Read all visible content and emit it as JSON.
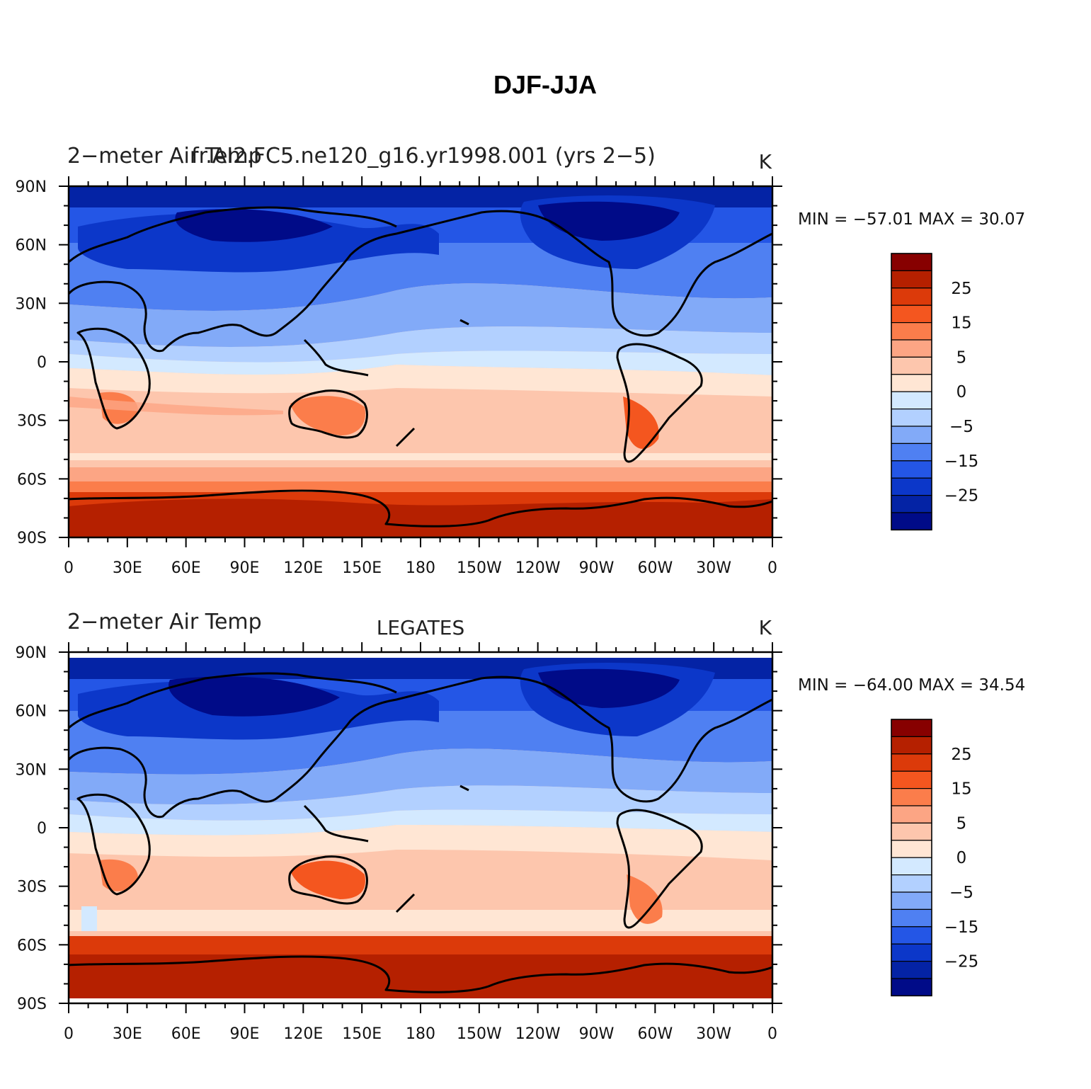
{
  "title": "DJF-JJA",
  "x_tick_labels": [
    "0",
    "30E",
    "60E",
    "90E",
    "120E",
    "150E",
    "180",
    "150W",
    "120W",
    "90W",
    "60W",
    "30W",
    "0"
  ],
  "y_tick_labels": [
    "90N",
    "60N",
    "30N",
    "0",
    "30S",
    "60S",
    "90S"
  ],
  "colorbar_labels": [
    "25",
    "15",
    "5",
    "0",
    "−5",
    "−15",
    "−25"
  ],
  "colorbar_colors": [
    "#870000",
    "#b52000",
    "#dc3a0a",
    "#f4561f",
    "#fb7d4b",
    "#fca584",
    "#fdc6ad",
    "#ffe6d4",
    "#d3e9ff",
    "#b2d0ff",
    "#82aaf8",
    "#4f80f2",
    "#2456e6",
    "#0c37c9",
    "#0423a5",
    "#000b88"
  ],
  "panels": [
    {
      "variable": "2−meter Air Temp",
      "case": "fr.AI2.FC5.ne120_g16.yr1998.001 (yrs 2−5)",
      "units": "K",
      "stats": "MIN = −57.01  MAX =   30.07"
    },
    {
      "variable": "2−meter Air Temp",
      "case": "LEGATES",
      "units": "K",
      "stats": "MIN = −64.00  MAX =   34.54"
    }
  ]
}
